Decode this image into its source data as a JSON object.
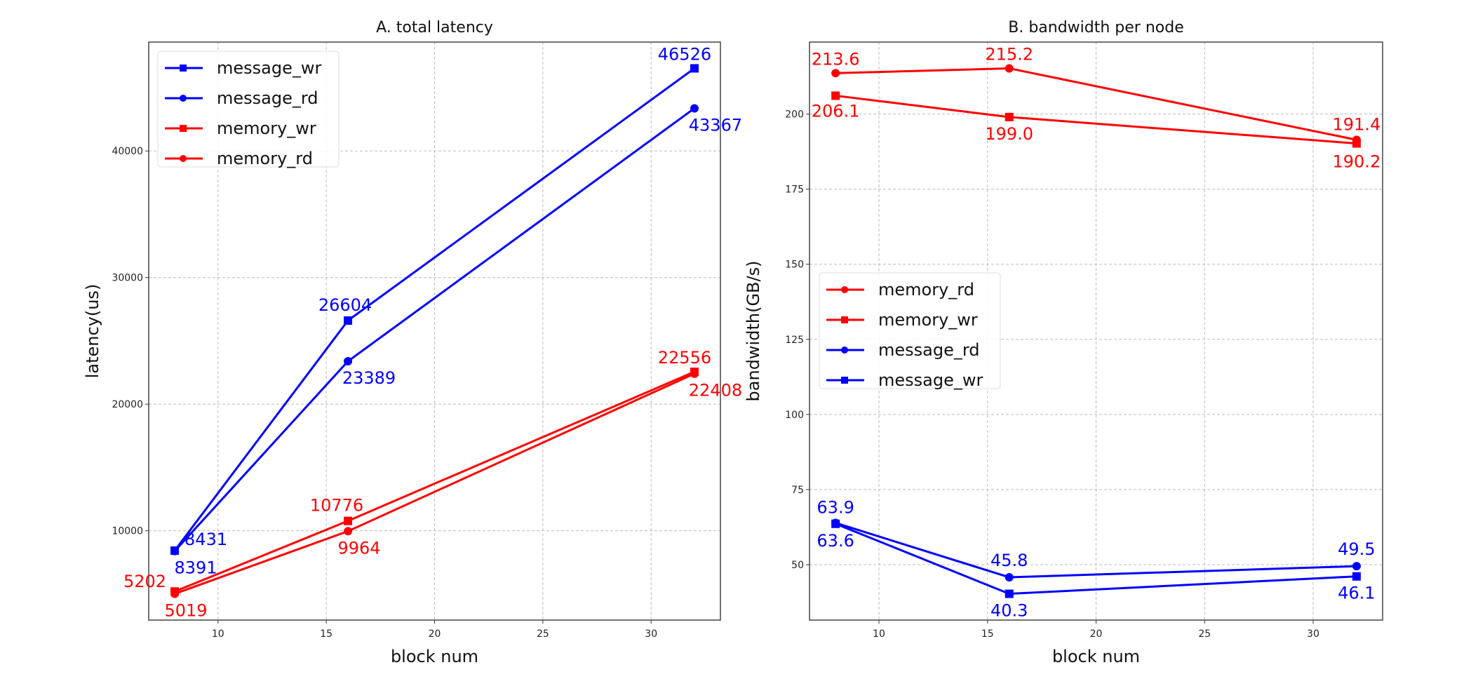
{
  "chart_data": [
    {
      "type": "line",
      "title": "A. total latency",
      "xlabel": "block num",
      "ylabel": "latency(us)",
      "x": [
        8,
        16,
        32
      ],
      "xlim": [
        6.8,
        33.2
      ],
      "ylim": [
        2944,
        48601
      ],
      "xticks": [
        10,
        15,
        20,
        25,
        30
      ],
      "yticks": [
        10000,
        20000,
        30000,
        40000
      ],
      "grid": true,
      "legend_position": "upper-left",
      "series": [
        {
          "name": "message_wr",
          "color": "#0000ff",
          "marker": "square",
          "values": [
            8431,
            26604,
            46526
          ],
          "labels": [
            "8431",
            "26604",
            "46526"
          ]
        },
        {
          "name": "message_rd",
          "color": "#0000ff",
          "marker": "circle",
          "values": [
            8391,
            23389,
            43367
          ],
          "labels": [
            "8391",
            "23389",
            "43367"
          ]
        },
        {
          "name": "memory_wr",
          "color": "#ff0000",
          "marker": "square",
          "values": [
            5202,
            10776,
            22556
          ],
          "labels": [
            "5202",
            "10776",
            "22556"
          ]
        },
        {
          "name": "memory_rd",
          "color": "#ff0000",
          "marker": "circle",
          "values": [
            5019,
            9964,
            22408
          ],
          "labels": [
            "5019",
            "9964",
            "22408"
          ]
        }
      ]
    },
    {
      "type": "line",
      "title": "B. bandwidth per node",
      "xlabel": "block num",
      "ylabel": "bandwidth(GB/s)",
      "x": [
        8,
        16,
        32
      ],
      "xlim": [
        6.8,
        33.2
      ],
      "ylim": [
        31.555,
        223.945
      ],
      "xticks": [
        10,
        15,
        20,
        25,
        30
      ],
      "yticks": [
        50,
        75,
        100,
        125,
        150,
        175,
        200
      ],
      "grid": true,
      "legend_position": "center-left",
      "series": [
        {
          "name": "memory_rd",
          "color": "#ff0000",
          "marker": "circle",
          "values": [
            213.6,
            215.2,
            191.4
          ],
          "labels": [
            "213.6",
            "215.2",
            "191.4"
          ]
        },
        {
          "name": "memory_wr",
          "color": "#ff0000",
          "marker": "square",
          "values": [
            206.1,
            199.0,
            190.2
          ],
          "labels": [
            "206.1",
            "199.0",
            "190.2"
          ]
        },
        {
          "name": "message_rd",
          "color": "#0000ff",
          "marker": "circle",
          "values": [
            63.9,
            45.8,
            49.5
          ],
          "labels": [
            "63.9",
            "45.8",
            "49.5"
          ]
        },
        {
          "name": "message_wr",
          "color": "#0000ff",
          "marker": "square",
          "values": [
            63.6,
            40.3,
            46.1
          ],
          "labels": [
            "63.6",
            "40.3",
            "46.1"
          ]
        }
      ]
    }
  ]
}
